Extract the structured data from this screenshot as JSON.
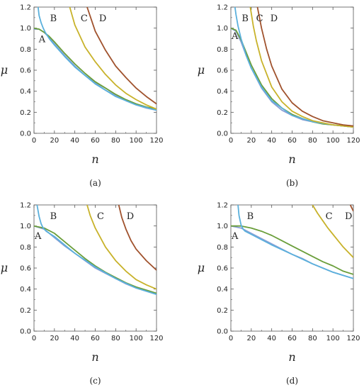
{
  "colors": {
    "A": "#8a9fd6",
    "B": "#5ab0dc",
    "C": "#c8b22a",
    "D": "#a0522d",
    "green": "#6a9e3a"
  },
  "chart_data": [
    {
      "type": "line",
      "caption": "(a)",
      "xlabel": "n",
      "ylabel": "μ",
      "xlim": [
        0,
        120
      ],
      "ylim": [
        0,
        1.2
      ],
      "xticks": [
        "0",
        "20",
        "40",
        "60",
        "80",
        "100",
        "120"
      ],
      "yticks": [
        "0.0",
        "0.2",
        "0.4",
        "0.6",
        "0.8",
        "1.0",
        "1.2"
      ],
      "series": [
        {
          "name": "A",
          "color": "#8a9fd6",
          "x": [
            0,
            5,
            10,
            15,
            20,
            30,
            40,
            50,
            60,
            70,
            80,
            90,
            100,
            110,
            120
          ],
          "y": [
            0.99,
            0.99,
            0.96,
            0.91,
            0.85,
            0.74,
            0.64,
            0.55,
            0.48,
            0.41,
            0.36,
            0.31,
            0.27,
            0.24,
            0.22
          ]
        },
        {
          "name": "",
          "color": "#6a9e3a",
          "x": [
            0,
            5,
            10,
            15,
            20,
            30,
            40,
            50,
            60,
            70,
            80,
            90,
            100,
            110,
            120
          ],
          "y": [
            1.0,
            0.99,
            0.96,
            0.92,
            0.87,
            0.76,
            0.66,
            0.57,
            0.49,
            0.43,
            0.37,
            0.32,
            0.28,
            0.25,
            0.23
          ]
        },
        {
          "name": "B",
          "color": "#5ab0dc",
          "x": [
            4,
            5,
            7,
            9,
            11,
            13,
            15,
            20,
            30,
            40,
            60,
            80,
            100,
            120
          ],
          "y": [
            1.2,
            1.12,
            1.05,
            1.0,
            0.96,
            0.93,
            0.9,
            0.84,
            0.73,
            0.63,
            0.47,
            0.35,
            0.27,
            0.22
          ]
        },
        {
          "name": "C",
          "color": "#c8b22a",
          "x": [
            35,
            40,
            50,
            60,
            70,
            80,
            90,
            100,
            110,
            120
          ],
          "y": [
            1.2,
            1.03,
            0.82,
            0.68,
            0.56,
            0.46,
            0.38,
            0.32,
            0.27,
            0.23
          ]
        },
        {
          "name": "D",
          "color": "#a0522d",
          "x": [
            52,
            60,
            70,
            80,
            90,
            100,
            110,
            120
          ],
          "y": [
            1.2,
            0.97,
            0.79,
            0.64,
            0.53,
            0.43,
            0.35,
            0.28
          ]
        }
      ],
      "annotations": [
        {
          "text": "A",
          "x": 4,
          "y": 0.9
        },
        {
          "text": "B",
          "x": 15,
          "y": 1.1
        },
        {
          "text": "C",
          "x": 45,
          "y": 1.1
        },
        {
          "text": "D",
          "x": 63,
          "y": 1.1
        }
      ]
    },
    {
      "type": "line",
      "caption": "(b)",
      "xlabel": "n",
      "ylabel": "μ",
      "xlim": [
        0,
        120
      ],
      "ylim": [
        0,
        1.2
      ],
      "xticks": [
        "0",
        "20",
        "40",
        "60",
        "80",
        "100",
        "120"
      ],
      "yticks": [
        "0.0",
        "0.2",
        "0.4",
        "0.6",
        "0.8",
        "1.0",
        "1.2"
      ],
      "series": [
        {
          "name": "A",
          "color": "#8a9fd6",
          "x": [
            0,
            5,
            10,
            15,
            20,
            30,
            40,
            50,
            60,
            70,
            80,
            90,
            100,
            110,
            120
          ],
          "y": [
            1.0,
            0.97,
            0.87,
            0.74,
            0.62,
            0.43,
            0.3,
            0.22,
            0.17,
            0.13,
            0.11,
            0.09,
            0.08,
            0.07,
            0.06
          ]
        },
        {
          "name": "",
          "color": "#6a9e3a",
          "x": [
            0,
            5,
            10,
            15,
            20,
            30,
            40,
            50,
            60,
            70,
            80,
            90,
            100,
            110,
            120
          ],
          "y": [
            1.0,
            0.98,
            0.89,
            0.77,
            0.65,
            0.46,
            0.33,
            0.24,
            0.18,
            0.14,
            0.11,
            0.09,
            0.08,
            0.07,
            0.06
          ]
        },
        {
          "name": "B",
          "color": "#5ab0dc",
          "x": [
            4,
            5,
            7,
            10,
            15,
            20,
            30,
            40,
            60,
            80,
            100,
            120
          ],
          "y": [
            1.2,
            1.13,
            1.02,
            0.9,
            0.74,
            0.62,
            0.44,
            0.31,
            0.17,
            0.11,
            0.08,
            0.06
          ]
        },
        {
          "name": "C",
          "color": "#c8b22a",
          "x": [
            19,
            22,
            25,
            30,
            40,
            50,
            60,
            70,
            80,
            90,
            100,
            110,
            120
          ],
          "y": [
            1.2,
            1.02,
            0.88,
            0.69,
            0.44,
            0.3,
            0.21,
            0.16,
            0.12,
            0.1,
            0.08,
            0.07,
            0.06
          ]
        },
        {
          "name": "D",
          "color": "#a0522d",
          "x": [
            26,
            30,
            35,
            40,
            50,
            60,
            70,
            80,
            90,
            100,
            110,
            120
          ],
          "y": [
            1.2,
            1.0,
            0.8,
            0.64,
            0.42,
            0.29,
            0.21,
            0.16,
            0.12,
            0.1,
            0.08,
            0.07
          ]
        }
      ],
      "annotations": [
        {
          "text": "A",
          "x": 0,
          "y": 0.93
        },
        {
          "text": "B",
          "x": 10,
          "y": 1.1
        },
        {
          "text": "C",
          "x": 24,
          "y": 1.1
        },
        {
          "text": "D",
          "x": 38,
          "y": 1.1
        }
      ]
    },
    {
      "type": "line",
      "caption": "(c)",
      "xlabel": "n",
      "ylabel": "μ",
      "xlim": [
        0,
        120
      ],
      "ylim": [
        0,
        1.2
      ],
      "xticks": [
        "0",
        "20",
        "40",
        "60",
        "80",
        "100",
        "120"
      ],
      "yticks": [
        "0.0",
        "0.2",
        "0.4",
        "0.6",
        "0.8",
        "1.0",
        "1.2"
      ],
      "series": [
        {
          "name": "A",
          "color": "#8a9fd6",
          "x": [
            0,
            10,
            20,
            30,
            40,
            50,
            60,
            70,
            80,
            90,
            100,
            110,
            120
          ],
          "y": [
            1.0,
            0.97,
            0.89,
            0.81,
            0.74,
            0.67,
            0.6,
            0.55,
            0.5,
            0.45,
            0.41,
            0.38,
            0.35
          ]
        },
        {
          "name": "",
          "color": "#6a9e3a",
          "x": [
            0,
            10,
            20,
            30,
            40,
            50,
            60,
            70,
            80,
            90,
            100,
            110,
            120
          ],
          "y": [
            1.0,
            0.98,
            0.93,
            0.85,
            0.77,
            0.69,
            0.62,
            0.56,
            0.51,
            0.46,
            0.42,
            0.39,
            0.36
          ]
        },
        {
          "name": "B",
          "color": "#5ab0dc",
          "x": [
            3,
            5,
            7,
            9,
            12,
            15,
            20,
            30,
            40,
            60,
            80,
            100,
            120
          ],
          "y": [
            1.2,
            1.09,
            1.02,
            0.98,
            0.95,
            0.93,
            0.9,
            0.82,
            0.74,
            0.61,
            0.5,
            0.41,
            0.35
          ]
        },
        {
          "name": "C",
          "color": "#c8b22a",
          "x": [
            52,
            55,
            60,
            70,
            80,
            90,
            100,
            110,
            120
          ],
          "y": [
            1.2,
            1.1,
            0.98,
            0.8,
            0.67,
            0.57,
            0.49,
            0.44,
            0.4
          ]
        },
        {
          "name": "D",
          "color": "#a0522d",
          "x": [
            83,
            86,
            90,
            95,
            100,
            110,
            120
          ],
          "y": [
            1.2,
            1.08,
            0.97,
            0.86,
            0.78,
            0.67,
            0.58
          ]
        }
      ],
      "annotations": [
        {
          "text": "A",
          "x": 0,
          "y": 0.91
        },
        {
          "text": "B",
          "x": 15,
          "y": 1.1
        },
        {
          "text": "C",
          "x": 61,
          "y": 1.1
        },
        {
          "text": "D",
          "x": 90,
          "y": 1.1
        }
      ]
    },
    {
      "type": "line",
      "caption": "(d)",
      "xlabel": "n",
      "ylabel": "μ",
      "xlim": [
        0,
        120
      ],
      "ylim": [
        0,
        1.2
      ],
      "xticks": [
        "0",
        "20",
        "40",
        "60",
        "80",
        "100",
        "120"
      ],
      "yticks": [
        "0.0",
        "0.2",
        "0.4",
        "0.6",
        "0.8",
        "1.0",
        "1.2"
      ],
      "series": [
        {
          "name": "A",
          "color": "#8a9fd6",
          "x": [
            0,
            10,
            20,
            30,
            40,
            50,
            60,
            70,
            80,
            90,
            100,
            110,
            120
          ],
          "y": [
            1.0,
            0.98,
            0.93,
            0.88,
            0.83,
            0.78,
            0.73,
            0.69,
            0.64,
            0.6,
            0.56,
            0.53,
            0.5
          ]
        },
        {
          "name": "",
          "color": "#6a9e3a",
          "x": [
            0,
            10,
            20,
            30,
            40,
            50,
            60,
            70,
            80,
            90,
            100,
            110,
            120
          ],
          "y": [
            1.0,
            1.0,
            0.98,
            0.95,
            0.91,
            0.86,
            0.81,
            0.76,
            0.71,
            0.66,
            0.62,
            0.57,
            0.54
          ]
        },
        {
          "name": "B",
          "color": "#5ab0dc",
          "x": [
            7,
            8,
            10,
            12,
            14,
            16,
            20,
            30,
            40,
            60,
            80,
            100,
            120
          ],
          "y": [
            1.2,
            1.1,
            1.01,
            0.97,
            0.95,
            0.94,
            0.92,
            0.87,
            0.82,
            0.73,
            0.64,
            0.56,
            0.5
          ]
        },
        {
          "name": "C",
          "color": "#c8b22a",
          "x": [
            80,
            85,
            90,
            95,
            100,
            105,
            110,
            115,
            120
          ],
          "y": [
            1.2,
            1.12,
            1.05,
            0.98,
            0.92,
            0.86,
            0.8,
            0.75,
            0.7
          ]
        },
        {
          "name": "D",
          "color": "#a0522d",
          "x": [
            117,
            118,
            119,
            120
          ],
          "y": [
            1.2,
            1.18,
            1.16,
            1.14
          ]
        }
      ],
      "annotations": [
        {
          "text": "A",
          "x": 0,
          "y": 0.91
        },
        {
          "text": "B",
          "x": 15,
          "y": 1.1
        },
        {
          "text": "C",
          "x": 92,
          "y": 1.1
        },
        {
          "text": "D",
          "x": 111,
          "y": 1.1
        }
      ]
    }
  ]
}
